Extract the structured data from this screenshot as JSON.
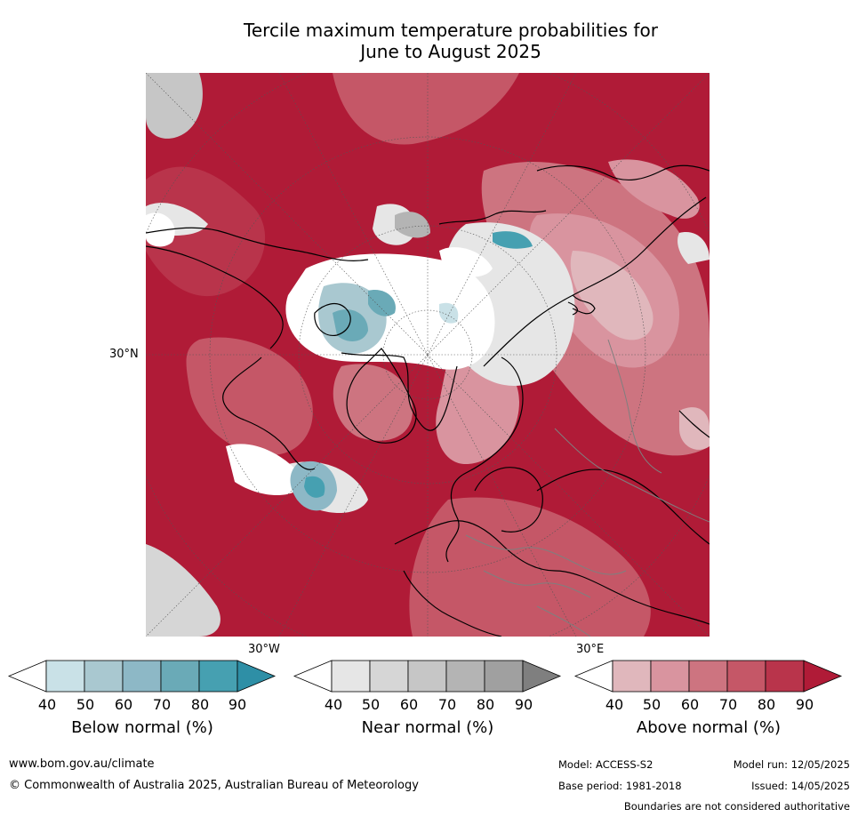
{
  "title_line1": "Tercile maximum temperature probabilities for",
  "title_line2": "June to August 2025",
  "map": {
    "projection": "north-polar-stereographic",
    "lat_labels": [
      "30°N"
    ],
    "lon_labels": [
      "30°W",
      "30°E"
    ],
    "dominant_category": "Above normal",
    "colors": {
      "above": [
        "#e0b7bc",
        "#d9949f",
        "#cd7480",
        "#c55767",
        "#b9344b",
        "#b01b37"
      ],
      "near": [
        "#e6e6e6",
        "#d6d6d6",
        "#c6c6c6",
        "#b4b4b4",
        "#a0a0a0",
        "#7f7f7f"
      ],
      "below": [
        "#c9e1e7",
        "#a9c8d0",
        "#8db8c6",
        "#6aaab7",
        "#46a0b1",
        "#2e8fa6"
      ],
      "coast": "#000000",
      "borders": "#7f7f7f"
    }
  },
  "legends": [
    {
      "label": "Below normal (%)",
      "ticks": [
        "40",
        "50",
        "60",
        "70",
        "80",
        "90"
      ],
      "colors": [
        "#ffffff",
        "#c9e1e7",
        "#a9c8d0",
        "#8db8c6",
        "#6aaab7",
        "#46a0b1",
        "#2e8fa6"
      ]
    },
    {
      "label": "Near normal (%)",
      "ticks": [
        "40",
        "50",
        "60",
        "70",
        "80",
        "90"
      ],
      "colors": [
        "#ffffff",
        "#e6e6e6",
        "#d6d6d6",
        "#c6c6c6",
        "#b4b4b4",
        "#a0a0a0",
        "#7f7f7f"
      ]
    },
    {
      "label": "Above normal (%)",
      "ticks": [
        "40",
        "50",
        "60",
        "70",
        "80",
        "90"
      ],
      "colors": [
        "#ffffff",
        "#e0b7bc",
        "#d9949f",
        "#cd7480",
        "#c55767",
        "#b9344b",
        "#b01b37"
      ]
    }
  ],
  "footer": {
    "website": "www.bom.gov.au/climate",
    "copyright": "© Commonwealth of Australia 2025, Australian Bureau of Meteorology",
    "model": "Model: ACCESS-S2",
    "base_period": "Base period: 1981-2018",
    "model_run": "Model run: 12/05/2025",
    "issued": "Issued: 14/05/2025",
    "disclaimer": "Boundaries are not considered authoritative"
  }
}
